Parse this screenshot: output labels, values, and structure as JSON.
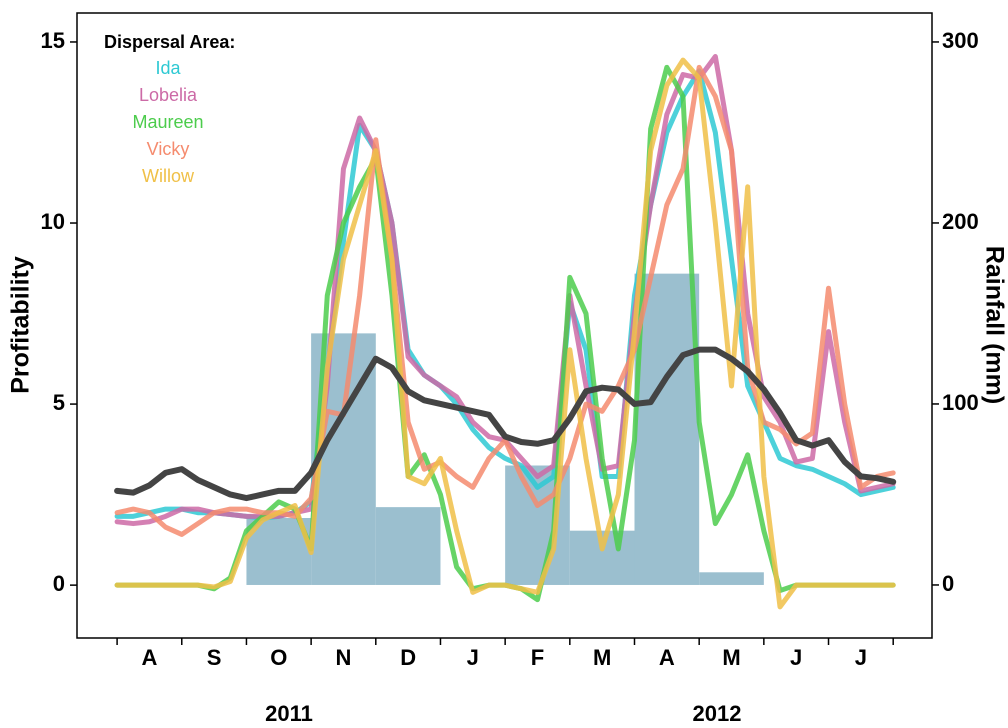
{
  "chart_data": {
    "type": "line",
    "y_label": "Profitability",
    "y2_label": "Rainfall (mm)",
    "legend_title": "Dispersal Area:",
    "legend": "top-left",
    "categories": [
      "A",
      "S",
      "O",
      "N",
      "D",
      "J",
      "F",
      "M",
      "A",
      "M",
      "J",
      "J"
    ],
    "x_group_labels": [
      "2011",
      "2012"
    ],
    "x": [
      0,
      0.25,
      0.5,
      0.75,
      1,
      1.25,
      1.5,
      1.75,
      2,
      2.25,
      2.5,
      2.75,
      3,
      3.25,
      3.5,
      3.75,
      4,
      4.25,
      4.5,
      4.75,
      5,
      5.25,
      5.5,
      5.75,
      6,
      6.25,
      6.5,
      6.75,
      7,
      7.25,
      7.5,
      7.75,
      8,
      8.25,
      8.5,
      8.75,
      9,
      9.25,
      9.5,
      9.75,
      10,
      10.25,
      10.5,
      10.75,
      11,
      11.25,
      11.5,
      11.75,
      12
    ],
    "xlim": [
      -0.62,
      12.6
    ],
    "ylim": [
      -1.46,
      15.8
    ],
    "yticks": [
      0,
      5,
      10,
      15
    ],
    "y2lim": [
      -29.3,
      316
    ],
    "y2ticks": [
      0,
      100,
      200,
      300
    ],
    "bars": {
      "axis": "y2",
      "color": "#9bbfcf",
      "values": [
        0,
        0,
        37,
        139,
        43,
        0,
        66,
        30,
        172,
        7,
        0,
        0
      ]
    },
    "series": [
      {
        "name": "Ida",
        "color": "#2ec9d3",
        "values": [
          1.9,
          1.9,
          2.0,
          2.1,
          2.1,
          2.0,
          2.0,
          1.95,
          1.9,
          1.85,
          1.9,
          2.0,
          2.3,
          6,
          9.5,
          12.7,
          12.0,
          10,
          6.5,
          5.8,
          5.5,
          5.0,
          4.3,
          3.8,
          3.5,
          3.3,
          2.7,
          3.0,
          7.8,
          6.5,
          3.0,
          3.0,
          8.0,
          10.5,
          12.5,
          13.5,
          14.2,
          12.5,
          9.0,
          5.5,
          4.5,
          3.5,
          3.3,
          3.2,
          3.0,
          2.8,
          2.5,
          2.6,
          2.7
        ]
      },
      {
        "name": "Lobelia",
        "color": "#cc6aa6",
        "values": [
          1.75,
          1.7,
          1.75,
          1.9,
          2.1,
          2.1,
          2.0,
          1.95,
          1.9,
          1.9,
          1.9,
          2.0,
          2.1,
          5.5,
          11.5,
          12.9,
          12.0,
          10,
          6.3,
          5.8,
          5.5,
          5.2,
          4.5,
          4.1,
          4.0,
          3.5,
          3.0,
          3.3,
          8.0,
          5.5,
          3.2,
          3.3,
          7.5,
          10.5,
          13.0,
          14.1,
          14.0,
          14.6,
          12,
          7.5,
          5.2,
          4.5,
          3.4,
          3.5,
          7.0,
          4.5,
          2.6,
          2.7,
          2.8
        ]
      },
      {
        "name": "Maureen",
        "color": "#4ccc4c",
        "values": [
          0,
          0,
          0,
          0,
          0,
          0,
          -0.1,
          0.2,
          1.5,
          1.9,
          2.3,
          2.1,
          1.0,
          8,
          10,
          11,
          11.8,
          8,
          3.0,
          3.6,
          2.5,
          0.5,
          -0.1,
          0,
          0,
          -0.1,
          -0.4,
          1.5,
          8.5,
          7.5,
          3.5,
          1.0,
          4.0,
          12.6,
          14.3,
          13.5,
          4.5,
          1.7,
          2.5,
          3.6,
          1.5,
          -0.15,
          0,
          0,
          0,
          0,
          0,
          0,
          0
        ]
      },
      {
        "name": "Vicky",
        "color": "#f58b6e",
        "values": [
          2.0,
          2.1,
          2.0,
          1.6,
          1.4,
          1.7,
          2.0,
          2.1,
          2.1,
          2.0,
          2.0,
          1.9,
          2.4,
          4.8,
          4.7,
          8,
          12.3,
          9,
          4.5,
          3.2,
          3.4,
          3.0,
          2.7,
          3.5,
          4.0,
          3.0,
          2.2,
          2.5,
          3.5,
          5.0,
          4.8,
          5.5,
          6.5,
          8.5,
          10.5,
          11.5,
          14.3,
          13.5,
          12,
          6,
          4.5,
          4.3,
          3.9,
          4.2,
          8.2,
          5.0,
          2.7,
          3.0,
          3.1
        ]
      },
      {
        "name": "Willow",
        "color": "#f0c048",
        "values": [
          0,
          0,
          0,
          0,
          0,
          0,
          -0.05,
          0.1,
          1.3,
          1.8,
          2.0,
          2.2,
          0.9,
          6,
          9,
          10.5,
          12,
          9,
          3.0,
          2.8,
          3.5,
          1.5,
          -0.2,
          0,
          0,
          -0.1,
          -0.2,
          1.0,
          6.5,
          3.5,
          1.0,
          2.5,
          7.0,
          12,
          13.8,
          14.5,
          14,
          10,
          5.5,
          11.0,
          3.0,
          -0.6,
          0,
          0,
          0,
          0,
          0,
          0,
          0
        ]
      },
      {
        "color": "#444444",
        "axis": "y2",
        "values": [
          52,
          51,
          55,
          62,
          64,
          58,
          54,
          50,
          48,
          50,
          52,
          52,
          62,
          80,
          95,
          110,
          125,
          120,
          107,
          102,
          100,
          98,
          96,
          94,
          82,
          79,
          78,
          80,
          92,
          107,
          109,
          108,
          100,
          101,
          115,
          127,
          130,
          130,
          125,
          118,
          108,
          95,
          80,
          77,
          80,
          68,
          60,
          59,
          57
        ]
      }
    ]
  }
}
